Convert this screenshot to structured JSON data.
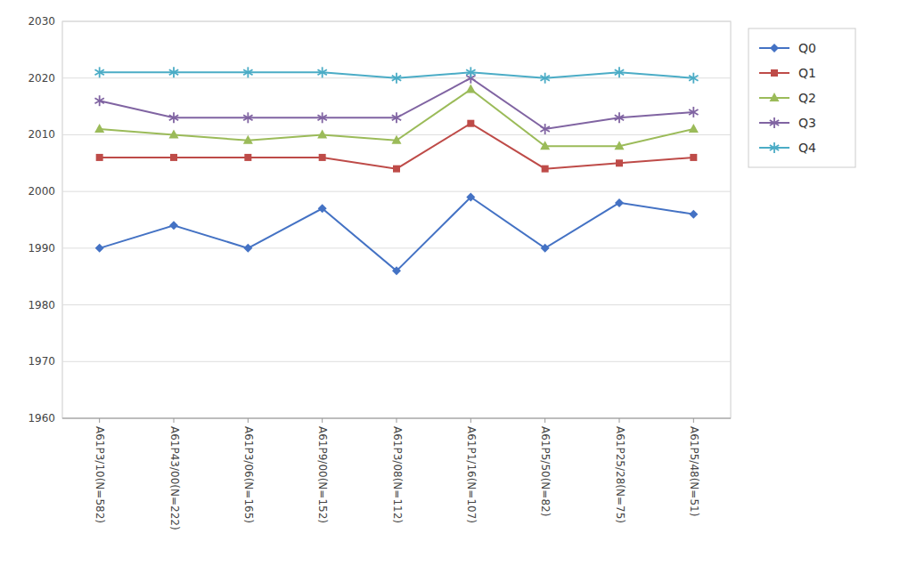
{
  "chart_data": {
    "type": "line",
    "categories": [
      "A61P3/10(N=582)",
      "A61P43/00(N=222)",
      "A61P3/06(N=165)",
      "A61P9/00(N=152)",
      "A61P3/08(N=112)",
      "A61P1/16(N=107)",
      "A61P5/50(N=82)",
      "A61P25/28(N=75)",
      "A61P5/48(N=51)"
    ],
    "series": [
      {
        "name": "Q0",
        "color": "#4472C4",
        "marker": "diamond",
        "line_style": "solid",
        "values": [
          1990,
          1994,
          1990,
          1997,
          1986,
          1999,
          1990,
          1998,
          1996
        ]
      },
      {
        "name": "Q1",
        "color": "#BE4B48",
        "marker": "square",
        "line_style": "solid",
        "values": [
          2006,
          2006,
          2006,
          2006,
          2004,
          2012,
          2004,
          2005,
          2006
        ]
      },
      {
        "name": "Q2",
        "color": "#9BBB59",
        "marker": "triangle",
        "line_style": "solid",
        "values": [
          2011,
          2010,
          2009,
          2010,
          2009,
          2018,
          2008,
          2008,
          2011
        ]
      },
      {
        "name": "Q3",
        "color": "#8064A2",
        "marker": "asterisk",
        "line_style": "solid",
        "values": [
          2016,
          2013,
          2013,
          2013,
          2013,
          2020,
          2011,
          2013,
          2014
        ]
      },
      {
        "name": "Q4",
        "color": "#4BACC6",
        "marker": "asterisk",
        "line_style": "solid",
        "values": [
          2021,
          2021,
          2021,
          2021,
          2020,
          2021,
          2020,
          2021,
          2020
        ]
      }
    ],
    "ylim": [
      1960,
      2030
    ],
    "yticks": [
      1960,
      1970,
      1980,
      1990,
      2000,
      2010,
      2020,
      2030
    ],
    "grid": true,
    "legend": "upper right"
  }
}
